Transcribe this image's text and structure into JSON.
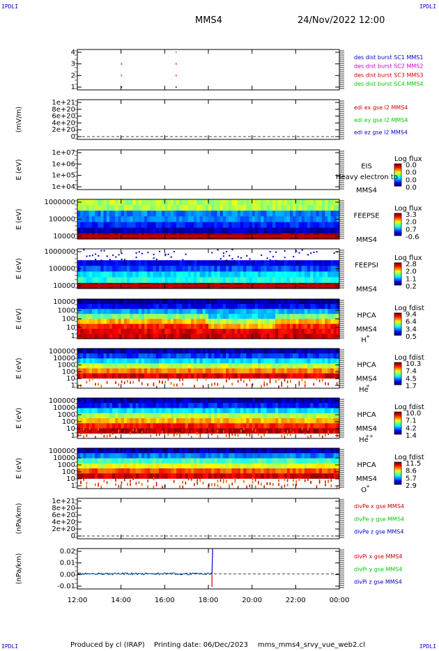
{
  "page": {
    "corner_tl": "IPDLI",
    "corner_tr": "IPDLI",
    "corner_bl": "IPDLI",
    "corner_br": "IPDLI",
    "title": "MMS4",
    "date": "24/Nov/2022 12:00",
    "footer_producer": "Produced by cl (IRAP)",
    "footer_date": "Printing date: 06/Dec/2023",
    "footer_file": "mms_mms4_srvy_vue_web2.cl"
  },
  "colors": {
    "red": "#cc0000",
    "green": "#00cc00",
    "blue": "#0000cc",
    "magenta": "#cc00cc"
  },
  "chart_data": {
    "type": "stacked-panels",
    "time_axis": {
      "start": "12:00",
      "end": "00:00",
      "ticks": [
        "12:00",
        "14:00",
        "16:00",
        "18:00",
        "20:00",
        "22:00",
        "00:00"
      ]
    },
    "panels": [
      {
        "type": "scatter",
        "ylabel": "",
        "yticks": [
          "4",
          "3",
          "2",
          "1"
        ],
        "legend": [
          {
            "text": "des dist burst SC1 MMS1",
            "color": "#0000cc"
          },
          {
            "text": "des dist burst SC2 MMS2",
            "color": "#cc00cc"
          },
          {
            "text": "des dist burst SC3 MMS3",
            "color": "#cc0000"
          },
          {
            "text": "des dist burst SC4 MMS4",
            "color": "#00cc00"
          }
        ],
        "points": [
          {
            "t": "14:00",
            "sc": 1
          },
          {
            "t": "14:00",
            "sc": 2
          },
          {
            "t": "14:00",
            "sc": 3
          },
          {
            "t": "16:30",
            "sc": 1
          },
          {
            "t": "16:30",
            "sc": 2
          },
          {
            "t": "16:30",
            "sc": 3
          },
          {
            "t": "16:30",
            "sc": 4
          }
        ]
      },
      {
        "type": "line",
        "ylabel": "(mV/m)",
        "yticks": [
          "1e+21",
          "8e+20",
          "6e+20",
          "4e+20",
          "2e+20",
          "0"
        ],
        "legend": [
          {
            "text": "edi ex gse l2 MMS4",
            "color": "#cc0000"
          },
          {
            "text": "edi ey gse l2 MMS4",
            "color": "#00cc00"
          },
          {
            "text": "edi ez gse l2 MMS4",
            "color": "#0000cc"
          }
        ]
      },
      {
        "type": "spectrogram",
        "ylabel": "E (eV)",
        "yticks": [
          "1e+07",
          "1e+06",
          "1e+05",
          "1e+04"
        ],
        "instrument": "EIS",
        "sc": "MMS4",
        "overlay": "Heavy electron to",
        "colorbar": {
          "title": "Log flux",
          "ticks": [
            "0.0",
            "0.0",
            "0.0",
            "0.0"
          ]
        },
        "empty": true
      },
      {
        "type": "spectrogram",
        "ylabel": "E (eV)",
        "yticks": [
          "1000000",
          "100000",
          "10000"
        ],
        "instrument": "FEEPSE",
        "sc": "MMS4",
        "colorbar": {
          "title": "Log flux",
          "ticks": [
            "3.3",
            "2.0",
            "0.7",
            "-0.6"
          ]
        },
        "profile": [
          0.55,
          0.55,
          0.25,
          0.25,
          0.15,
          0.05,
          0.98
        ]
      },
      {
        "type": "spectrogram",
        "ylabel": "E (eV)",
        "yticks": [
          "1000000",
          "100000",
          "10000"
        ],
        "instrument": "FEEPSI",
        "sc": "MMS4",
        "colorbar": {
          "title": "Log flux",
          "ticks": [
            "2.8",
            "2.0",
            "1.1",
            "0.2"
          ]
        },
        "profile": [
          -1,
          -1,
          0.1,
          0.2,
          0.35,
          0.4,
          0.98
        ]
      },
      {
        "type": "spectrogram",
        "ylabel": "E (eV)",
        "yticks": [
          "10000",
          "1000",
          "100",
          "10",
          "1"
        ],
        "instrument": "HPCA",
        "sc": "MMS4",
        "species": "H",
        "charge": "+",
        "colorbar": {
          "title": "Log fdist",
          "ticks": [
            "9.4",
            "6.4",
            "3.4",
            "0.5"
          ]
        },
        "profile": [
          0.02,
          0.12,
          0.3,
          0.5,
          0.7,
          0.85,
          0.9,
          0.92
        ]
      },
      {
        "type": "spectrogram",
        "ylabel": "E (eV)",
        "yticks": [
          "100000",
          "10000",
          "1000",
          "100",
          "10",
          "1"
        ],
        "instrument": "HPCA",
        "sc": "MMS4",
        "species": "He",
        "charge": "+",
        "colorbar": {
          "title": "Log fdist",
          "ticks": [
            "10.3",
            "7.4",
            "4.5",
            "1.7"
          ]
        },
        "profile": [
          0.05,
          0.18,
          0.35,
          0.55,
          0.75,
          0.9,
          -1,
          -1
        ]
      },
      {
        "type": "spectrogram",
        "ylabel": "E (eV)",
        "yticks": [
          "100000",
          "10000",
          "1000",
          "100",
          "10",
          "1"
        ],
        "instrument": "HPCA",
        "sc": "MMS4",
        "species": "He",
        "charge": "++",
        "colorbar": {
          "title": "Log fdist",
          "ticks": [
            "10.0",
            "7.1",
            "4.2",
            "1.4"
          ]
        },
        "profile": [
          0.05,
          0.15,
          0.35,
          0.55,
          0.7,
          0.85,
          0.95,
          -1
        ]
      },
      {
        "type": "spectrogram",
        "ylabel": "E (eV)",
        "yticks": [
          "100000",
          "10000",
          "1000",
          "100",
          "10",
          "1"
        ],
        "instrument": "HPCA",
        "sc": "MMS4",
        "species": "O",
        "charge": "+",
        "colorbar": {
          "title": "Log fdist",
          "ticks": [
            "11.5",
            "8.6",
            "5.7",
            "2.9"
          ]
        },
        "profile": [
          0.05,
          0.25,
          0.45,
          0.6,
          0.8,
          0.92,
          -1,
          -1
        ]
      },
      {
        "type": "line",
        "ylabel": "(nPa/km)",
        "yticks": [
          "1e+21",
          "8e+20",
          "6e+20",
          "4e+20",
          "2e+20",
          "0"
        ],
        "legend": [
          {
            "text": "divPe x gse MMS4",
            "color": "#cc0000"
          },
          {
            "text": "divPe y gse MMS4",
            "color": "#00cc00"
          },
          {
            "text": "divPe z gse MMS4",
            "color": "#0000cc"
          }
        ]
      },
      {
        "type": "line",
        "ylabel": "(nPa/km)",
        "yticks": [
          "0.02",
          "0.01",
          "0.00",
          "-0.01"
        ],
        "ylim": [
          -0.015,
          0.025
        ],
        "legend": [
          {
            "text": "divPi x gse MMS4",
            "color": "#cc0000"
          },
          {
            "text": "divPi y gse MMS4",
            "color": "#00cc00"
          },
          {
            "text": "divPi z gse MMS4",
            "color": "#0000cc"
          }
        ],
        "series_end": "18:10",
        "spike": {
          "t": "18:10",
          "max": 0.025,
          "min": -0.013
        }
      }
    ]
  }
}
